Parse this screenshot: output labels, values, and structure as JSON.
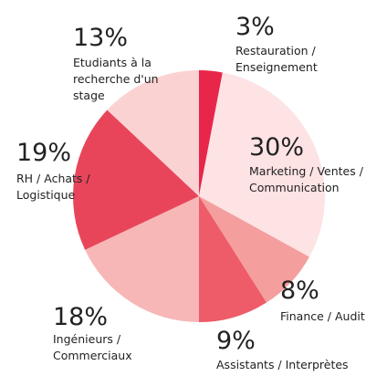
{
  "chart_data": {
    "type": "pie",
    "categories": [
      [
        "Restauration /",
        "Enseignement"
      ],
      [
        "Marketing / Ventes /",
        "Communication"
      ],
      [
        "Finance / Audit"
      ],
      [
        "Assistants / Interprètes"
      ],
      [
        "Ingénieurs /",
        "Commerciaux"
      ],
      [
        "RH / Achats /",
        "Logistique"
      ],
      [
        "Etudiants à la",
        "recherche d'un",
        "stage"
      ]
    ],
    "values": [
      3,
      30,
      8,
      9,
      18,
      19,
      13
    ],
    "value_labels": [
      "3%",
      "30%",
      "8%",
      "9%",
      "18%",
      "19%",
      "13%"
    ],
    "colors": [
      "#e8264a",
      "#fde3e4",
      "#f49e9e",
      "#ee5b69",
      "#f7b7b7",
      "#e8455b",
      "#fbd2d2"
    ]
  }
}
